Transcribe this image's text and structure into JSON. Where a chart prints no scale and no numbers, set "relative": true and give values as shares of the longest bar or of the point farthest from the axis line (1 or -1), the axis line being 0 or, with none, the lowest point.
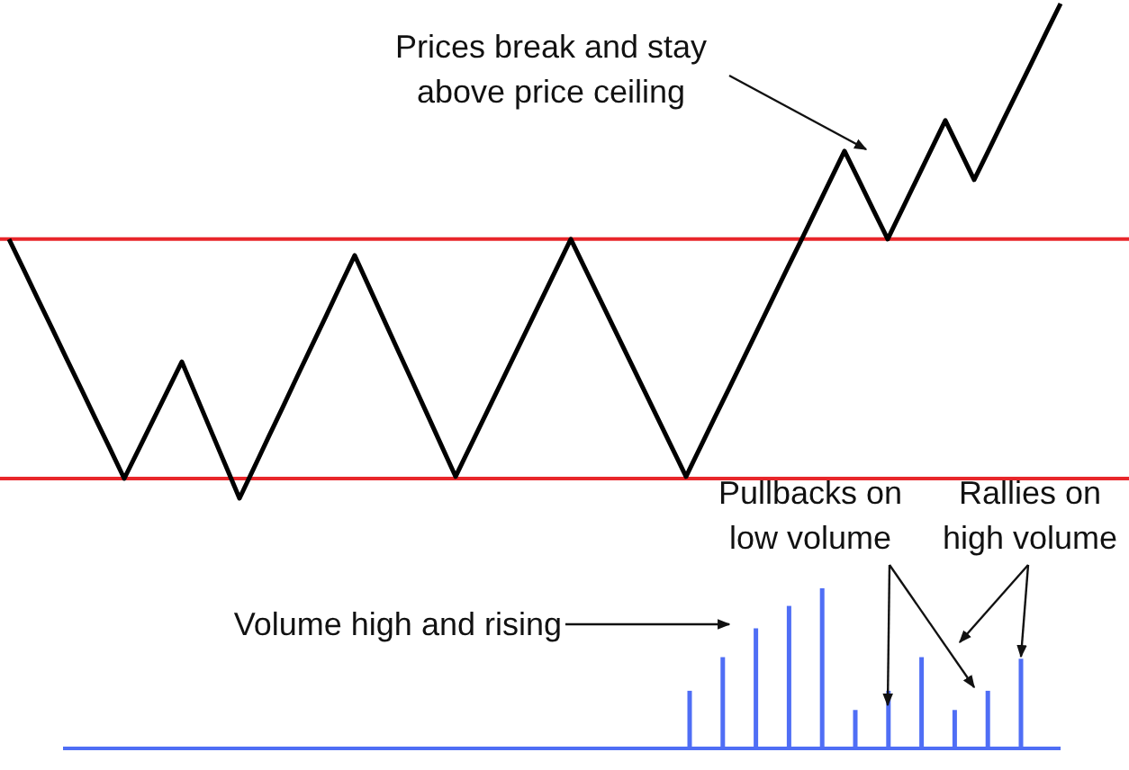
{
  "chart_data": [
    {
      "type": "line",
      "relative": true,
      "tick_labels": false,
      "categories": [
        null,
        null,
        null,
        null,
        null,
        null,
        null,
        null,
        null,
        null,
        null,
        null,
        null,
        null,
        null,
        null,
        null,
        null,
        null,
        null,
        null,
        null,
        null,
        null,
        null,
        null,
        null,
        null,
        null,
        null,
        null,
        null,
        null,
        null,
        null,
        null,
        null,
        null,
        null,
        null,
        null,
        null,
        null,
        null,
        null,
        null,
        null,
        null,
        null,
        null,
        null,
        null,
        null,
        null,
        null,
        null,
        null,
        null,
        null,
        null,
        null,
        null,
        null,
        null,
        null,
        null,
        null,
        null,
        null,
        null,
        null,
        null,
        null,
        null
      ],
      "series": [
        {
          "color": "#000000",
          "values": [
            0.524,
            0.464,
            0.403,
            0.343,
            0.282,
            0.222,
            0.161,
            0.101,
            0.04,
            0.099,
            0.158,
            0.217,
            0.276,
            0.207,
            0.138,
            0.069,
            0,
            0.061,
            0.123,
            0.184,
            0.246,
            0.307,
            0.368,
            0.43,
            0.491,
            0.427,
            0.363,
            0.299,
            0.236,
            0.172,
            0.108,
            0.044,
            0.104,
            0.164,
            0.224,
            0.284,
            0.344,
            0.404,
            0.464,
            0.524,
            0.464,
            0.404,
            0.344,
            0.284,
            0.224,
            0.164,
            0.104,
            0.044,
            0.104,
            0.164,
            0.223,
            0.283,
            0.343,
            0.403,
            0.463,
            0.522,
            0.582,
            0.642,
            0.702,
            0.643,
            0.583,
            0.524,
            0.584,
            0.644,
            0.704,
            0.764,
            0.704,
            0.644,
            0.703,
            0.763,
            0.822,
            0.881,
            0.941,
            1
          ]
        }
      ],
      "ref_lines": [
        {
          "axis": "y",
          "value": 0.524,
          "color": "#e8262a"
        },
        {
          "axis": "y",
          "value": 0.04,
          "color": "#e8262a"
        }
      ],
      "annotations": [
        "Prices break and stay above price ceiling"
      ]
    },
    {
      "type": "bar",
      "relative": true,
      "tick_labels": false,
      "categories": [
        null,
        null,
        null,
        null,
        null,
        null,
        null,
        null,
        null,
        null,
        null
      ],
      "values": [
        0.36,
        0.57,
        0.75,
        0.89,
        1,
        0.24,
        0.36,
        0.57,
        0.24,
        0.36,
        0.56
      ],
      "color": "#4f6ef5",
      "annotations": [
        "Volume high and rising",
        "Pullbacks on low volume",
        "Rallies on high volume"
      ]
    }
  ]
}
